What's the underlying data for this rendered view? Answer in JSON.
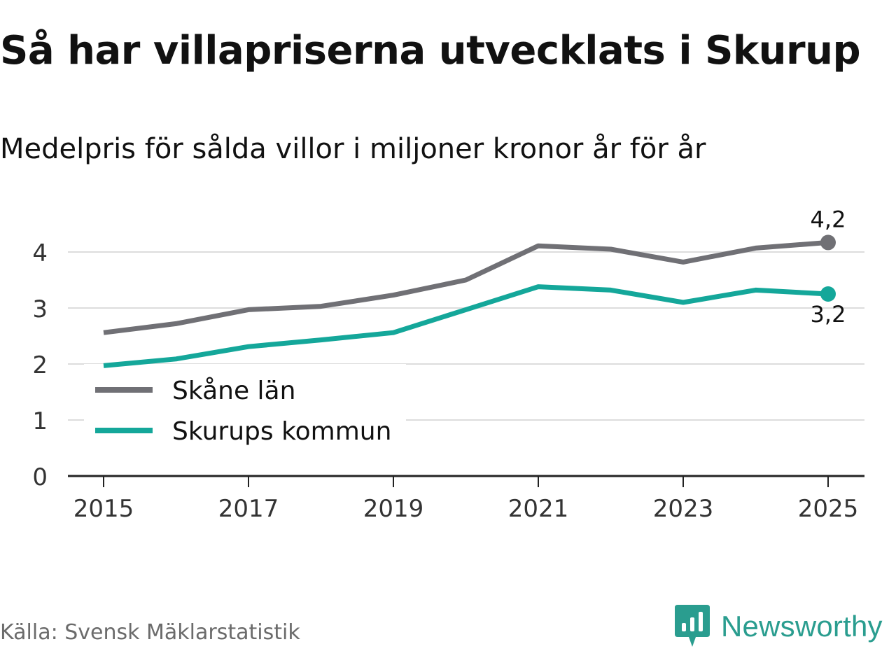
{
  "title": "Så har villapriserna utvecklats i Skurup",
  "subtitle": "Medelpris för sålda villor i miljoner kronor år för år",
  "source": "Källa: Svensk Mäklarstatistik",
  "brand": "Newsworthy",
  "colors": {
    "series_gray": "#707075",
    "series_teal": "#14a79a",
    "grid": "#dddddd",
    "axis": "#222222",
    "brand": "#2a9d8f"
  },
  "chart_data": {
    "type": "line",
    "x": [
      2015,
      2016,
      2017,
      2018,
      2019,
      2020,
      2021,
      2022,
      2023,
      2024,
      2025
    ],
    "xticks": [
      "2015",
      "2017",
      "2019",
      "2021",
      "2023",
      "2025"
    ],
    "yticks": [
      "0",
      "1",
      "2",
      "3",
      "4"
    ],
    "ylim": [
      0,
      4.4
    ],
    "grid": true,
    "legend_position": "bottom-left",
    "series": [
      {
        "name": "Skåne län",
        "color": "#707075",
        "values": [
          2.56,
          2.72,
          2.97,
          3.03,
          3.23,
          3.5,
          4.11,
          4.05,
          3.82,
          4.07,
          4.17
        ],
        "end_label": "4,2",
        "end_label_position": "above"
      },
      {
        "name": "Skurups kommun",
        "color": "#14a79a",
        "values": [
          1.97,
          2.09,
          2.31,
          2.43,
          2.56,
          2.97,
          3.38,
          3.32,
          3.1,
          3.32,
          3.25
        ],
        "end_label": "3,2",
        "end_label_position": "below"
      }
    ]
  }
}
